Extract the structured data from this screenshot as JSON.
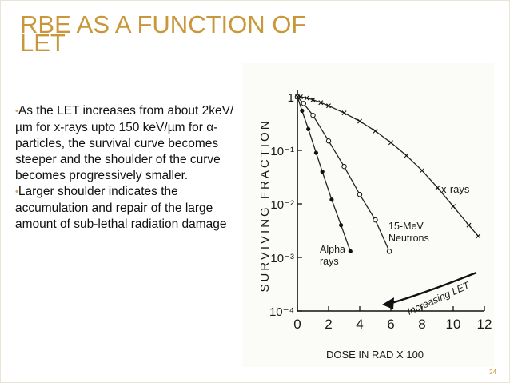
{
  "slide": {
    "title_line1": "RBE AS A FUNCTION OF",
    "title_line2": "LET",
    "page_number": "24",
    "accent_color": "#c8973a",
    "bullets": [
      "As the LET increases from about 2keV/µm for x-rays upto 150 keV/µm for α-particles, the survival curve becomes steeper and the shoulder of the curve becomes progressively smaller.",
      "Larger shoulder indicates the accumulation and repair of the large amount of sub-lethal radiation damage"
    ]
  },
  "chart_data": {
    "type": "line",
    "xlabel": "DOSE IN RAD X 100",
    "ylabel": "SURVIVING FRACTION",
    "x_ticks": [
      "0",
      "2",
      "4",
      "6",
      "8",
      "10",
      "12"
    ],
    "y_ticks": [
      "1",
      "10⁻¹",
      "10⁻²",
      "10⁻³",
      "10⁻⁴"
    ],
    "xlim": [
      0,
      12
    ],
    "ylim": [
      0.0001,
      1
    ],
    "y_scale": "log",
    "series": [
      {
        "name": "Alpha rays",
        "marker": "filled-circle",
        "x": [
          0,
          0.3,
          0.7,
          1.2,
          1.6,
          2.2,
          2.8,
          3.4
        ],
        "y": [
          1,
          0.55,
          0.25,
          0.09,
          0.04,
          0.012,
          0.004,
          0.0013
        ]
      },
      {
        "name": "15-MeV Neutrons",
        "marker": "open-circle",
        "x": [
          0,
          0.4,
          1,
          2,
          3,
          4,
          5,
          5.9
        ],
        "y": [
          1,
          0.75,
          0.45,
          0.15,
          0.05,
          0.015,
          0.005,
          0.0013
        ]
      },
      {
        "name": "x-rays",
        "marker": "x",
        "x": [
          0,
          0.2,
          0.6,
          1,
          1.5,
          2,
          3,
          4,
          5,
          6,
          7,
          8,
          9,
          10,
          11,
          11.6
        ],
        "y": [
          1,
          1,
          0.95,
          0.88,
          0.78,
          0.68,
          0.5,
          0.35,
          0.23,
          0.14,
          0.08,
          0.042,
          0.02,
          0.009,
          0.004,
          0.0025
        ]
      }
    ],
    "annotation": "Increasing LET"
  }
}
